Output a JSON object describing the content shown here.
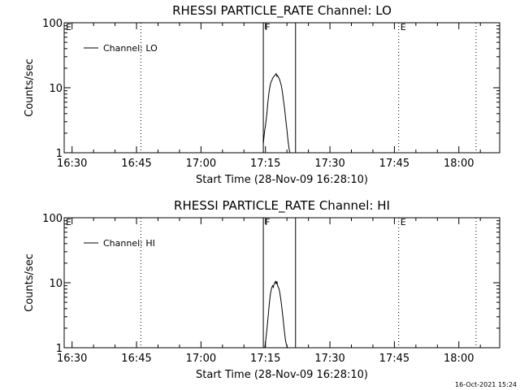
{
  "chart_data": [
    {
      "type": "line",
      "title": "RHESSI PARTICLE_RATE Channel: LO",
      "xlabel": "Start Time (28-Nov-09 16:28:10)",
      "ylabel": "Counts/sec",
      "yscale": "log",
      "xlim": [
        "16:28:10",
        "18:09:30"
      ],
      "ylim": [
        1,
        100
      ],
      "xticks": [
        "16:30",
        "16:45",
        "17:00",
        "17:15",
        "17:30",
        "17:45",
        "18:00"
      ],
      "yticks": [
        "1",
        "10",
        "100"
      ],
      "legend": {
        "position": "top-left",
        "entries": [
          "Channel: LO"
        ]
      },
      "series": [
        {
          "name": "Channel: LO",
          "x": [
            "17:14:30",
            "17:14:40",
            "17:14:50",
            "17:15:00",
            "17:15:10",
            "17:15:20",
            "17:15:30",
            "17:15:40",
            "17:15:50",
            "17:16:00",
            "17:16:10",
            "17:16:20",
            "17:16:30",
            "17:16:40",
            "17:16:50",
            "17:17:00",
            "17:17:10",
            "17:17:20",
            "17:17:30",
            "17:17:40",
            "17:17:50",
            "17:18:00",
            "17:18:10",
            "17:18:20",
            "17:18:30",
            "17:18:40",
            "17:18:50",
            "17:19:00",
            "17:19:10",
            "17:19:20",
            "17:19:30",
            "17:19:40",
            "17:19:50",
            "17:20:00",
            "17:20:10",
            "17:20:20",
            "17:20:30",
            "17:20:40"
          ],
          "values": [
            1.4,
            1.8,
            2.2,
            2.6,
            3.2,
            4.0,
            5.5,
            7.0,
            8.5,
            10.0,
            11.5,
            12.5,
            13.0,
            14.0,
            14.5,
            15.0,
            15.5,
            16.0,
            16.5,
            15.0,
            15.5,
            14.5,
            14.0,
            13.0,
            12.0,
            11.0,
            9.5,
            8.0,
            6.5,
            5.5,
            4.5,
            3.5,
            2.8,
            2.2,
            1.7,
            1.4,
            1.15,
            1.0
          ]
        }
      ],
      "annotations": {
        "vlines_dotted": [
          "16:46:00",
          "17:46:00",
          "18:04:00"
        ],
        "vlines_solid": [
          "17:14:30",
          "17:22:00"
        ],
        "flags": [
          {
            "label": "E",
            "x": "16:28:10"
          },
          {
            "label": "F",
            "x": "17:14:30"
          },
          {
            "label": "E",
            "x": "17:46:00"
          }
        ]
      }
    },
    {
      "type": "line",
      "title": "RHESSI PARTICLE_RATE Channel: HI",
      "xlabel": "Start Time (28-Nov-09 16:28:10)",
      "ylabel": "Counts/sec",
      "yscale": "log",
      "xlim": [
        "16:28:10",
        "18:09:30"
      ],
      "ylim": [
        1,
        100
      ],
      "xticks": [
        "16:30",
        "16:45",
        "17:00",
        "17:15",
        "17:30",
        "17:45",
        "18:00"
      ],
      "yticks": [
        "1",
        "10",
        "100"
      ],
      "legend": {
        "position": "top-left",
        "entries": [
          "Channel: HI"
        ]
      },
      "series": [
        {
          "name": "Channel: HI",
          "x": [
            "17:14:50",
            "17:15:00",
            "17:15:10",
            "17:15:20",
            "17:15:30",
            "17:15:40",
            "17:15:50",
            "17:16:00",
            "17:16:10",
            "17:16:20",
            "17:16:30",
            "17:16:40",
            "17:16:50",
            "17:17:00",
            "17:17:10",
            "17:17:20",
            "17:17:30",
            "17:17:40",
            "17:17:50",
            "17:18:00",
            "17:18:10",
            "17:18:20",
            "17:18:30",
            "17:18:40",
            "17:18:50",
            "17:19:00",
            "17:19:10",
            "17:19:20",
            "17:19:30",
            "17:19:40",
            "17:19:50",
            "17:20:00",
            "17:20:10"
          ],
          "values": [
            1.0,
            1.2,
            1.5,
            1.9,
            2.5,
            3.3,
            4.3,
            5.5,
            6.8,
            7.8,
            8.5,
            9.0,
            8.5,
            9.5,
            10.0,
            10.5,
            9.5,
            10.5,
            9.0,
            8.5,
            8.0,
            7.0,
            6.0,
            5.0,
            4.0,
            3.2,
            2.5,
            2.0,
            1.6,
            1.3,
            1.15,
            1.05,
            1.0
          ]
        }
      ],
      "annotations": {
        "vlines_dotted": [
          "16:46:00",
          "17:46:00",
          "18:04:00"
        ],
        "vlines_solid": [
          "17:14:30",
          "17:22:00"
        ],
        "flags": [
          {
            "label": "E",
            "x": "16:28:10"
          },
          {
            "label": "F",
            "x": "17:14:30"
          },
          {
            "label": "E",
            "x": "17:46:00"
          }
        ]
      }
    }
  ],
  "footer": {
    "timestamp": "16-Oct-2021 15:24"
  },
  "colors": {
    "background": "#ffffff",
    "foreground": "#000000"
  }
}
